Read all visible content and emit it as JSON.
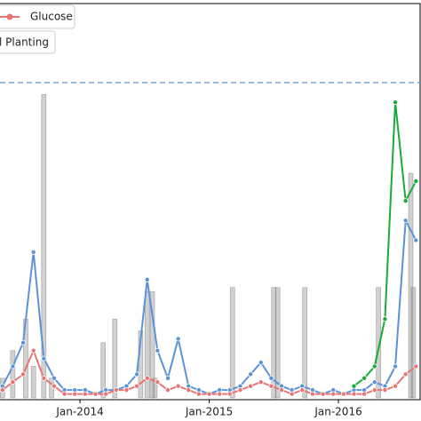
{
  "chart_data": {
    "type": "line",
    "x": [
      2013.4,
      2013.48,
      2013.56,
      2013.64,
      2013.72,
      2013.8,
      2013.88,
      2013.96,
      2014.04,
      2014.12,
      2014.2,
      2014.28,
      2014.36,
      2014.44,
      2014.52,
      2014.6,
      2014.68,
      2014.76,
      2014.84,
      2014.92,
      2015.0,
      2015.08,
      2015.16,
      2015.24,
      2015.32,
      2015.4,
      2015.48,
      2015.56,
      2015.64,
      2015.72,
      2015.8,
      2015.88,
      2015.96,
      2016.04,
      2016.12,
      2016.2,
      2016.28,
      2016.36,
      2016.44,
      2016.52,
      2016.6
    ],
    "series": [
      {
        "color": "#5b93d9",
        "values": [
          3,
          8,
          14,
          37,
          10,
          5,
          2,
          2,
          2,
          1,
          2,
          2,
          3,
          6,
          30,
          12,
          5,
          15,
          3,
          2,
          1,
          2,
          2,
          3,
          6,
          9,
          5,
          3,
          2,
          3,
          2,
          1,
          2,
          1,
          2,
          2,
          4,
          3,
          8,
          45,
          40
        ]
      },
      {
        "name": "Glucose",
        "color": "#e87474",
        "values": [
          2,
          4,
          6,
          12,
          5,
          3,
          1,
          1,
          1,
          1,
          1,
          2,
          2,
          3,
          5,
          4,
          2,
          3,
          2,
          1,
          1,
          1,
          1,
          2,
          3,
          4,
          3,
          2,
          1,
          2,
          1,
          1,
          1,
          1,
          1,
          1,
          2,
          2,
          3,
          6,
          8
        ]
      },
      {
        "color": "#1aaa3a",
        "values": [
          null,
          null,
          null,
          null,
          null,
          null,
          null,
          null,
          null,
          null,
          null,
          null,
          null,
          null,
          null,
          null,
          null,
          null,
          null,
          null,
          null,
          null,
          null,
          null,
          null,
          null,
          null,
          null,
          null,
          null,
          null,
          null,
          null,
          null,
          3,
          5,
          8,
          20,
          75,
          50,
          55
        ]
      }
    ],
    "bars": {
      "name": "l Planting",
      "color": "#8c8c8c",
      "x": [
        2013.4,
        2013.48,
        2013.58,
        2013.64,
        2013.72,
        2013.78,
        2014.18,
        2014.27,
        2014.47,
        2014.52,
        2014.56,
        2014.58,
        2015.18,
        2015.5,
        2015.53,
        2015.74,
        2016.31,
        2016.56,
        2016.58
      ],
      "values": [
        5,
        12,
        20,
        8,
        77,
        5,
        14,
        20,
        17,
        27,
        27,
        5,
        28,
        28,
        28,
        28,
        28,
        57,
        28
      ]
    },
    "hline": 80,
    "hline_color": "#5b8fc9",
    "xlim": [
      2013.381,
      2016.639
    ],
    "ylim": [
      0,
      100
    ],
    "xticks": [
      {
        "value": 2014,
        "label": "Jan-2014"
      },
      {
        "value": 2015,
        "label": "Jan-2015"
      },
      {
        "value": 2016,
        "label": "Jan-2016"
      }
    ]
  }
}
